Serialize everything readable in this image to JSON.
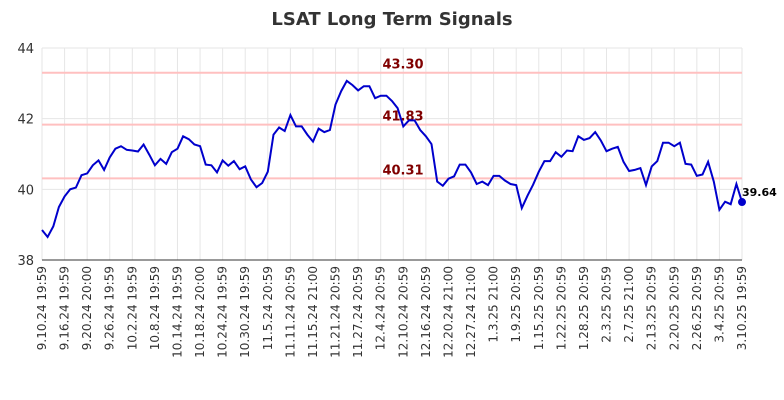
{
  "chart_data": {
    "type": "line",
    "title": "LSAT Long Term Signals",
    "ylim": [
      38,
      44
    ],
    "yticks": [
      38,
      40,
      42,
      44
    ],
    "grid": true,
    "x_tick_labels": [
      "9.10.24 19:59",
      "9.16.24 19:59",
      "9.20.24 20:00",
      "9.26.24 19:59",
      "10.2.24 19:59",
      "10.8.24 19:59",
      "10.14.24 19:59",
      "10.18.24 20:00",
      "10.24.24 19:59",
      "10.30.24 19:59",
      "11.5.24 20:59",
      "11.11.24 20:59",
      "11.15.24 21:00",
      "11.21.24 20:59",
      "11.27.24 20:59",
      "12.4.24 20:59",
      "12.10.24 20:59",
      "12.16.24 20:59",
      "12.20.24 21:00",
      "12.27.24 21:00",
      "1.3.25 21:00",
      "1.9.25 20:59",
      "1.15.25 20:59",
      "1.22.25 20:59",
      "1.28.25 20:59",
      "2.3.25 20:59",
      "2.7.25 21:00",
      "2.13.25 20:59",
      "2.20.25 20:59",
      "2.26.25 20:59",
      "3.4.25 20:59",
      "3.10.25 19:59"
    ],
    "series": [
      {
        "color": "#0000cc",
        "values": [
          38.85,
          38.65,
          38.95,
          39.5,
          39.8,
          40.0,
          40.05,
          40.4,
          40.45,
          40.68,
          40.82,
          40.55,
          40.9,
          41.15,
          41.22,
          41.12,
          41.1,
          41.07,
          41.27,
          40.98,
          40.68,
          40.86,
          40.72,
          41.05,
          41.15,
          41.5,
          41.42,
          41.27,
          41.22,
          40.7,
          40.68,
          40.48,
          40.82,
          40.67,
          40.8,
          40.57,
          40.65,
          40.28,
          40.06,
          40.18,
          40.5,
          41.55,
          41.75,
          41.65,
          42.1,
          41.78,
          41.78,
          41.55,
          41.35,
          41.72,
          41.62,
          41.68,
          42.4,
          42.78,
          43.07,
          42.95,
          42.8,
          42.92,
          42.92,
          42.58,
          42.65,
          42.65,
          42.5,
          42.3,
          41.78,
          41.95,
          41.95,
          41.68,
          41.5,
          41.28,
          40.22,
          40.1,
          40.3,
          40.37,
          40.7,
          40.7,
          40.48,
          40.15,
          40.22,
          40.12,
          40.38,
          40.38,
          40.25,
          40.15,
          40.12,
          39.47,
          39.82,
          40.13,
          40.5,
          40.8,
          40.8,
          41.05,
          40.92,
          41.1,
          41.08,
          41.5,
          41.4,
          41.45,
          41.62,
          41.38,
          41.08,
          41.15,
          41.2,
          40.78,
          40.52,
          40.55,
          40.6,
          40.12,
          40.65,
          40.8,
          41.32,
          41.32,
          41.22,
          41.32,
          40.72,
          40.7,
          40.38,
          40.42,
          40.78,
          40.22,
          39.42,
          39.65,
          39.58,
          40.15,
          39.64
        ]
      }
    ],
    "horizontal_lines": [
      {
        "value": 43.3,
        "label": "43.30"
      },
      {
        "value": 41.83,
        "label": "41.83"
      },
      {
        "value": 40.31,
        "label": "40.31"
      }
    ],
    "last_value_label": "39.64"
  }
}
